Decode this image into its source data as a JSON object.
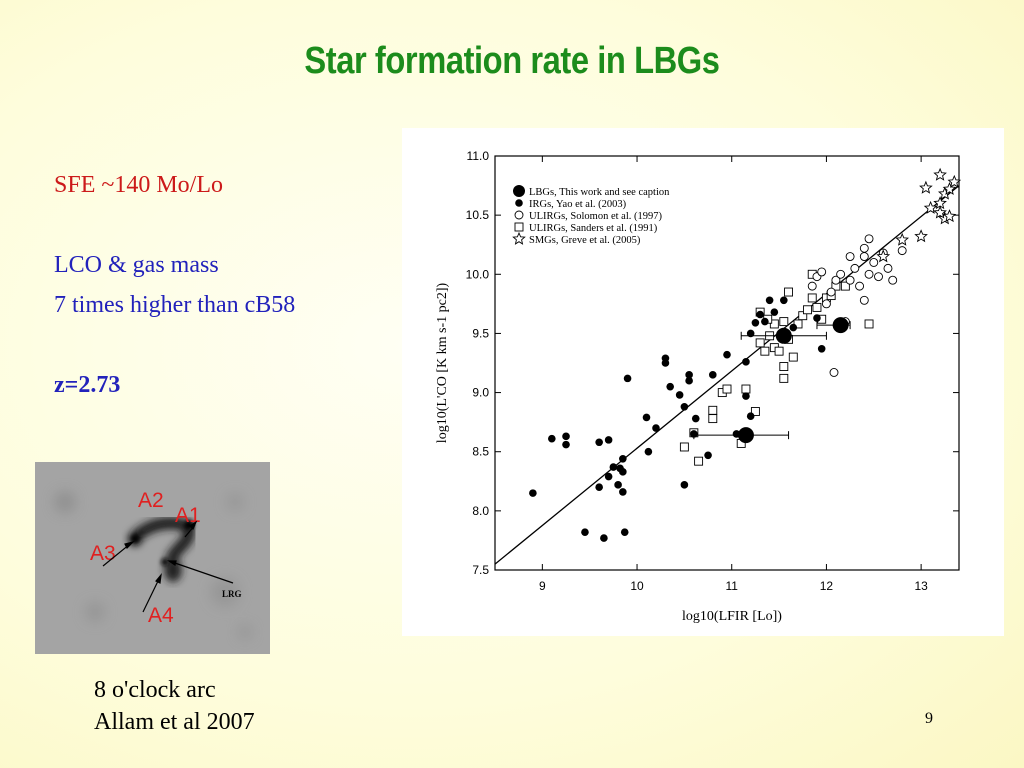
{
  "slide": {
    "title": "Star formation rate in LBGs",
    "sfe": "SFE ~140 Mo/Lo",
    "lco_line1": "LCO & gas mass",
    "lco_line2": "7 times higher than cB58",
    "redshift": "z=2.73",
    "caption_line1": "8 o'clock arc",
    "caption_line2": "Allam et al 2007",
    "page_number": "9"
  },
  "image_labels": {
    "a1": "A1",
    "a2": "A2",
    "a3": "A3",
    "a4": "A4",
    "lrg": "LRG"
  },
  "colors": {
    "title": "#1c8c1c",
    "red_text": "#cc1a1a",
    "blue_text": "#2222bb",
    "label_red": "#e02020"
  },
  "chart_data": {
    "type": "scatter",
    "xlabel": "log10(LFIR [Lo])",
    "ylabel": "log10(L'CO [K km s-1 pc2])",
    "xlim": [
      8.5,
      13.4
    ],
    "ylim": [
      7.5,
      11.0
    ],
    "x_ticks": [
      "9",
      "10",
      "11",
      "12",
      "13"
    ],
    "y_ticks": [
      "7.5",
      "8.0",
      "8.5",
      "9.0",
      "9.5",
      "10.0",
      "10.5",
      "11.0"
    ],
    "legend_position": "top-left",
    "fit_line": [
      [
        8.5,
        7.55
      ],
      [
        13.4,
        10.75
      ]
    ],
    "series": [
      {
        "name": "LBGs, This work and see caption",
        "marker": "big-dot",
        "points": [
          [
            11.15,
            8.64
          ],
          [
            11.55,
            9.48
          ],
          [
            12.15,
            9.57
          ]
        ],
        "xerr": [
          [
            10.6,
            11.6
          ],
          [
            11.1,
            12.0
          ],
          [
            11.9,
            12.25
          ]
        ]
      },
      {
        "name": "IRGs, Yao et al. (2003)",
        "marker": "dot",
        "points": [
          [
            8.9,
            8.15
          ],
          [
            9.1,
            8.61
          ],
          [
            9.25,
            8.63
          ],
          [
            9.25,
            8.56
          ],
          [
            9.45,
            7.82
          ],
          [
            9.6,
            8.2
          ],
          [
            9.6,
            8.58
          ],
          [
            9.65,
            7.77
          ],
          [
            9.7,
            8.29
          ],
          [
            9.7,
            8.6
          ],
          [
            9.75,
            8.37
          ],
          [
            9.8,
            8.22
          ],
          [
            9.82,
            8.36
          ],
          [
            9.85,
            8.16
          ],
          [
            9.85,
            8.33
          ],
          [
            9.85,
            8.44
          ],
          [
            9.87,
            7.82
          ],
          [
            9.9,
            9.12
          ],
          [
            10.1,
            8.79
          ],
          [
            10.12,
            8.5
          ],
          [
            10.2,
            8.7
          ],
          [
            10.3,
            9.25
          ],
          [
            10.3,
            9.29
          ],
          [
            10.35,
            9.05
          ],
          [
            10.45,
            8.98
          ],
          [
            10.5,
            8.88
          ],
          [
            10.55,
            9.1
          ],
          [
            10.55,
            9.15
          ],
          [
            10.6,
            8.65
          ],
          [
            10.62,
            8.78
          ],
          [
            10.5,
            8.22
          ],
          [
            10.75,
            8.47
          ],
          [
            10.8,
            9.15
          ],
          [
            10.95,
            9.32
          ],
          [
            11.05,
            8.65
          ],
          [
            11.15,
            9.26
          ],
          [
            11.2,
            9.5
          ],
          [
            11.25,
            9.59
          ],
          [
            11.3,
            9.66
          ],
          [
            11.35,
            9.6
          ],
          [
            11.4,
            9.78
          ],
          [
            11.45,
            9.68
          ],
          [
            11.55,
            9.78
          ],
          [
            11.65,
            9.55
          ],
          [
            11.9,
            9.63
          ],
          [
            11.95,
            9.37
          ],
          [
            11.15,
            8.97
          ],
          [
            11.2,
            8.8
          ]
        ]
      },
      {
        "name": "ULIRGs, Solomon et al. (1997)",
        "marker": "open-circle",
        "points": [
          [
            11.85,
            9.9
          ],
          [
            11.9,
            9.98
          ],
          [
            11.95,
            10.02
          ],
          [
            12.0,
            9.75
          ],
          [
            12.05,
            9.85
          ],
          [
            12.08,
            9.17
          ],
          [
            12.1,
            9.95
          ],
          [
            12.15,
            10.0
          ],
          [
            12.2,
            9.6
          ],
          [
            12.25,
            9.95
          ],
          [
            12.25,
            10.15
          ],
          [
            12.3,
            10.05
          ],
          [
            12.35,
            9.9
          ],
          [
            12.4,
            10.15
          ],
          [
            12.4,
            10.22
          ],
          [
            12.45,
            10.3
          ],
          [
            12.45,
            10.0
          ],
          [
            12.5,
            10.1
          ],
          [
            12.55,
            9.98
          ],
          [
            12.6,
            10.18
          ],
          [
            12.65,
            10.05
          ],
          [
            12.7,
            9.95
          ],
          [
            12.4,
            9.78
          ],
          [
            12.8,
            10.2
          ]
        ]
      },
      {
        "name": "ULIRGs, Sanders et al. (1991)",
        "marker": "open-square",
        "points": [
          [
            10.5,
            8.54
          ],
          [
            10.6,
            8.66
          ],
          [
            10.65,
            8.42
          ],
          [
            10.8,
            8.78
          ],
          [
            10.8,
            8.85
          ],
          [
            10.9,
            9.0
          ],
          [
            10.95,
            9.03
          ],
          [
            11.1,
            8.57
          ],
          [
            11.15,
            9.03
          ],
          [
            11.25,
            8.84
          ],
          [
            11.3,
            9.42
          ],
          [
            11.35,
            9.35
          ],
          [
            11.4,
            9.48
          ],
          [
            11.45,
            9.38
          ],
          [
            11.45,
            9.58
          ],
          [
            11.5,
            9.35
          ],
          [
            11.55,
            9.22
          ],
          [
            11.55,
            9.12
          ],
          [
            11.6,
            9.45
          ],
          [
            11.65,
            9.3
          ],
          [
            11.7,
            9.58
          ],
          [
            11.75,
            9.65
          ],
          [
            11.8,
            9.7
          ],
          [
            11.85,
            9.8
          ],
          [
            11.9,
            9.72
          ],
          [
            11.95,
            9.62
          ],
          [
            12.0,
            9.8
          ],
          [
            12.05,
            9.82
          ],
          [
            12.1,
            9.9
          ],
          [
            11.3,
            9.68
          ],
          [
            11.38,
            9.62
          ],
          [
            11.6,
            9.85
          ],
          [
            11.55,
            9.6
          ],
          [
            12.45,
            9.58
          ],
          [
            12.2,
            9.9
          ],
          [
            11.85,
            10.0
          ]
        ]
      },
      {
        "name": "SMGs, Greve et al. (2005)",
        "marker": "star",
        "points": [
          [
            12.8,
            10.29
          ],
          [
            13.0,
            10.32
          ],
          [
            13.05,
            10.73
          ],
          [
            13.1,
            10.56
          ],
          [
            13.2,
            10.84
          ],
          [
            13.2,
            10.6
          ],
          [
            13.25,
            10.68
          ],
          [
            13.25,
            10.47
          ],
          [
            13.3,
            10.72
          ],
          [
            13.3,
            10.49
          ],
          [
            13.35,
            10.78
          ],
          [
            12.6,
            10.15
          ],
          [
            13.2,
            10.52
          ]
        ]
      }
    ]
  }
}
